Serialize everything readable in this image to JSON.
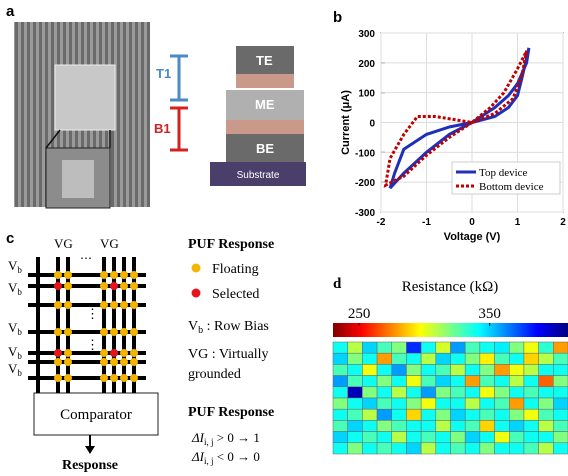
{
  "panel_a": {
    "label": "a",
    "t1": "T1",
    "b1": "B1",
    "layers": [
      "TE",
      "ME",
      "BE",
      "Substrate"
    ]
  },
  "panel_c": {
    "label": "c",
    "columns": [
      "VG",
      "VG"
    ],
    "dots": [
      "⋯",
      "⋮",
      "⋮"
    ],
    "row_labels": [
      {
        "main": "V",
        "sub": "b"
      },
      {
        "main": "V",
        "sub": "b"
      },
      {
        "main": "V",
        "sub": "b"
      },
      {
        "main": "V",
        "sub": "b"
      },
      {
        "main": "V",
        "sub": "b"
      }
    ],
    "comparator": "Comparator",
    "output": "Response",
    "legend_title": "PUF Response",
    "floating": "Floating",
    "selected": "Selected",
    "row_bias": {
      "main": "V",
      "sub": "b",
      "post": " : Row Bias"
    },
    "vg_note": [
      "VG : Virtually",
      "grounded"
    ],
    "rule_title": "PUF Response",
    "rules": [
      {
        "pre": "ΔI",
        "sub": "i, j",
        "post": " > 0 → 1"
      },
      {
        "pre": "ΔI",
        "sub": "i, j",
        "post": " < 0 → 0"
      }
    ]
  },
  "chart_data": [
    {
      "type": "line",
      "label": "b",
      "xlabel": "Voltage (V)",
      "ylabel": "Current (μA)",
      "xlim": [
        -2,
        2
      ],
      "xticks": [
        -2,
        -1,
        0,
        1,
        2
      ],
      "ylim": [
        -300,
        300
      ],
      "yticks": [
        -300,
        -200,
        -100,
        0,
        100,
        200,
        300
      ],
      "series": [
        {
          "name": "Top device",
          "color": "#1f2fb8",
          "dash": "solid",
          "x": [
            0,
            -0.5,
            -1,
            -1.5,
            -1.8,
            -1.7,
            -1.5,
            -1,
            -0.5,
            0,
            0.5,
            0.8,
            1.0,
            1.1,
            1.25,
            1.2,
            1.0,
            0.8,
            0.5,
            0.2,
            0
          ],
          "values": [
            0,
            -40,
            -100,
            -170,
            -220,
            -170,
            -90,
            -40,
            -15,
            0,
            20,
            50,
            90,
            150,
            250,
            200,
            130,
            90,
            50,
            20,
            0
          ]
        },
        {
          "name": "Bottom device",
          "color": "#c00000",
          "dash": "dotted",
          "x": [
            0,
            -0.5,
            -1,
            -1.5,
            -1.9,
            -1.8,
            -1.5,
            -1.2,
            -0.8,
            -0.4,
            0,
            0.5,
            0.9,
            1.1,
            1.2,
            1.0,
            0.7,
            0.4,
            0
          ],
          "values": [
            0,
            -50,
            -110,
            -180,
            -210,
            -120,
            -40,
            20,
            20,
            10,
            0,
            30,
            80,
            160,
            240,
            180,
            100,
            50,
            0
          ]
        }
      ]
    },
    {
      "type": "heatmap",
      "label": "d",
      "title": "Resistance (kΩ)",
      "clim": [
        230,
        410
      ],
      "cticks": [
        250,
        350
      ],
      "values": [
        [
          300,
          330,
          290,
          310,
          320,
          260,
          300,
          335,
          280,
          310,
          300,
          295,
          320,
          340,
          305,
          360
        ],
        [
          290,
          320,
          300,
          360,
          310,
          300,
          330,
          290,
          300,
          320,
          345,
          310,
          300,
          350,
          330,
          310
        ],
        [
          310,
          300,
          340,
          300,
          280,
          320,
          300,
          310,
          330,
          300,
          320,
          360,
          340,
          330,
          300,
          300
        ],
        [
          280,
          310,
          300,
          320,
          300,
          340,
          310,
          290,
          300,
          360,
          310,
          300,
          330,
          300,
          370,
          320
        ],
        [
          300,
          240,
          320,
          300,
          330,
          300,
          280,
          320,
          310,
          300,
          340,
          320,
          300,
          310,
          300,
          300
        ],
        [
          320,
          300,
          290,
          310,
          300,
          320,
          340,
          300,
          300,
          330,
          300,
          310,
          360,
          300,
          320,
          290
        ],
        [
          300,
          310,
          330,
          280,
          300,
          350,
          300,
          320,
          290,
          300,
          310,
          300,
          320,
          340,
          310,
          300
        ],
        [
          310,
          290,
          300,
          320,
          310,
          300,
          300,
          330,
          300,
          310,
          350,
          300,
          290,
          300,
          330,
          310
        ],
        [
          290,
          300,
          310,
          300,
          330,
          300,
          310,
          300,
          320,
          290,
          300,
          340,
          310,
          300,
          300,
          320
        ],
        [
          300,
          320,
          300,
          310,
          300,
          290,
          330,
          300,
          310,
          300,
          320,
          300,
          300,
          310,
          330,
          300
        ]
      ]
    }
  ]
}
